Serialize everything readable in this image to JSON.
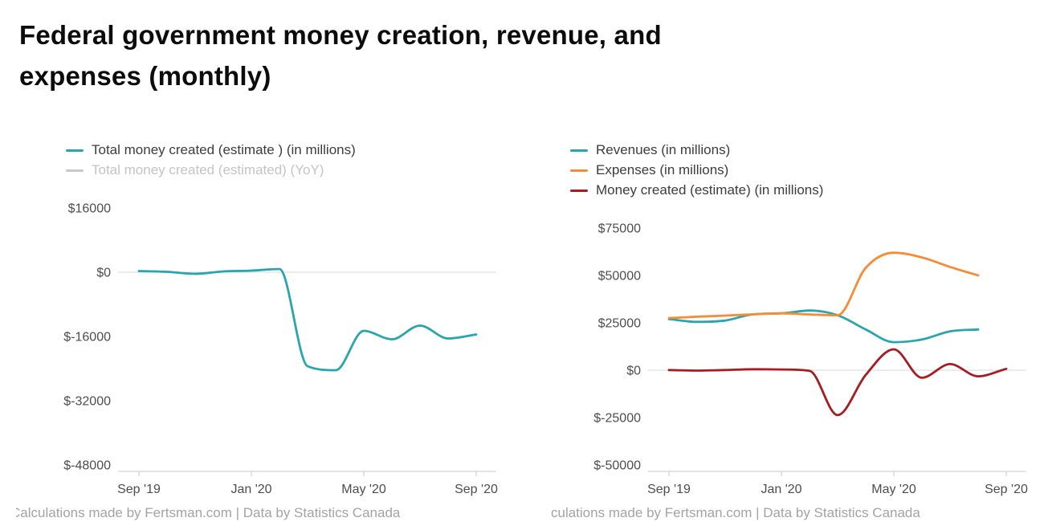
{
  "page": {
    "title": "Federal government money creation, revenue, and expenses (monthly)",
    "title_lines": [
      "Federal government money creation, revenue, and",
      "expenses (monthly)"
    ]
  },
  "colors": {
    "teal": "#29a5ad",
    "orange": "#f78b36",
    "dark_red": "#a51d23",
    "muted_gray": "#c9c9c9",
    "axis_text": "#4d4d4d",
    "grid": "#c9c9c9",
    "footer_text": "#a3a3a3"
  },
  "chart_data": [
    {
      "type": "line",
      "title": "",
      "legend": [
        {
          "label": "Total money created (estimate ) (in millions)",
          "color": "#29a5ad",
          "active": true
        },
        {
          "label": "Total money created (estimated) (YoY)",
          "color": "#c9c9c9",
          "active": false
        }
      ],
      "x_ticks": [
        "Sep '19",
        "Jan '20",
        "May '20",
        "Sep '20"
      ],
      "x_tick_months": [
        0,
        4,
        8,
        12
      ],
      "x_domain": [
        0,
        12.7
      ],
      "y_ticks": [
        16000,
        0,
        -16000,
        -32000,
        -48000
      ],
      "y_domain": [
        -48000,
        16000
      ],
      "grid": "zero-line-only",
      "legend_position": "top",
      "series": [
        {
          "name": "Total money created (estimate ) (in millions)",
          "color": "#29a5ad",
          "months": [
            "Sep '19",
            "Oct '19",
            "Nov '19",
            "Dec '19",
            "Jan '20",
            "Feb '20",
            "Mar '20",
            "Apr '20",
            "May '20",
            "Jun '20",
            "Jul '20",
            "Aug '20",
            "Sep '20"
          ],
          "values": [
            300,
            100,
            -400,
            200,
            400,
            800,
            -23400,
            -24400,
            -14600,
            -16700,
            -13300,
            -16500,
            -15500
          ]
        }
      ],
      "footer": "Calculations made by Fertsman.com | Data by Statistics Canada"
    },
    {
      "type": "line",
      "title": "",
      "legend": [
        {
          "label": "Revenues (in millions)",
          "color": "#29a5ad",
          "active": true
        },
        {
          "label": "Expenses (in millions)",
          "color": "#f78b36",
          "active": true
        },
        {
          "label": "Money created (estimate) (in millions)",
          "color": "#a51d23",
          "active": true
        }
      ],
      "x_ticks": [
        "Sep '19",
        "Jan '20",
        "May '20",
        "Sep '20"
      ],
      "x_tick_months": [
        0,
        4,
        8,
        12
      ],
      "x_domain": [
        0,
        12.7
      ],
      "y_ticks": [
        75000,
        50000,
        25000,
        0,
        -25000,
        -50000
      ],
      "y_domain": [
        -50000,
        75000
      ],
      "grid": "zero-line-only",
      "legend_position": "top",
      "series": [
        {
          "name": "Revenues (in millions)",
          "color": "#29a5ad",
          "months": [
            "Sep '19",
            "Oct '19",
            "Nov '19",
            "Dec '19",
            "Jan '20",
            "Feb '20",
            "Mar '20",
            "Apr '20",
            "May '20",
            "Jun '20",
            "Jul '20",
            "Aug '20"
          ],
          "values": [
            27000,
            25500,
            26200,
            29500,
            30000,
            31500,
            29000,
            21500,
            14800,
            16200,
            20500,
            21500
          ]
        },
        {
          "name": "Expenses (in millions)",
          "color": "#f78b36",
          "months": [
            "Sep '19",
            "Oct '19",
            "Nov '19",
            "Dec '19",
            "Jan '20",
            "Feb '20",
            "Mar '20",
            "Apr '20",
            "May '20",
            "Jun '20",
            "Jul '20",
            "Aug '20"
          ],
          "values": [
            27500,
            28200,
            28800,
            29500,
            30000,
            29400,
            29000,
            54000,
            62000,
            59500,
            54500,
            50000
          ]
        },
        {
          "name": "Money created (estimate) (in millions)",
          "color": "#a51d23",
          "months": [
            "Sep '19",
            "Oct '19",
            "Nov '19",
            "Dec '19",
            "Jan '20",
            "Feb '20",
            "Mar '20",
            "Apr '20",
            "May '20",
            "Jun '20",
            "Jul '20",
            "Aug '20",
            "Sep '20"
          ],
          "values": [
            100,
            -200,
            100,
            500,
            400,
            -300,
            -23700,
            -2500,
            11000,
            -4000,
            3200,
            -3200,
            700
          ]
        }
      ],
      "footer": "culations made by Fertsman.com | Data by Statistics Canada"
    }
  ]
}
